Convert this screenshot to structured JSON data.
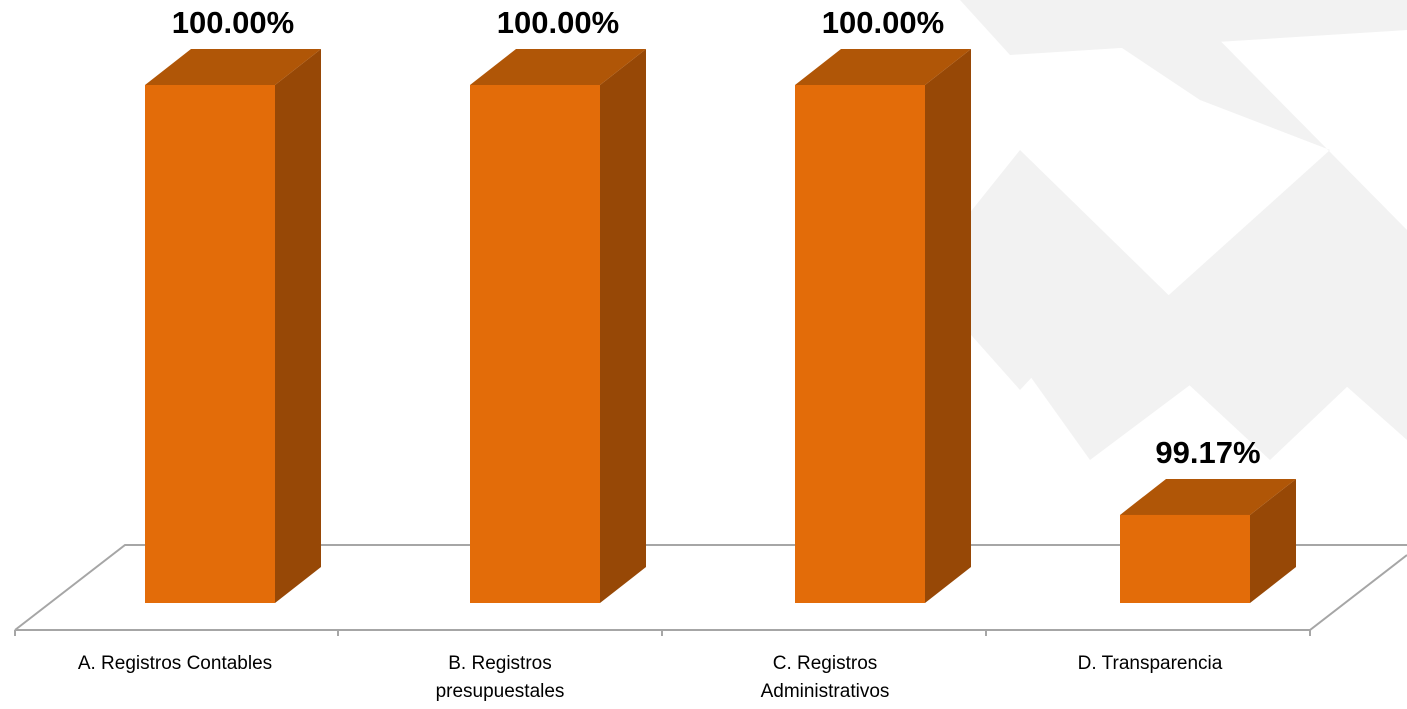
{
  "chart_data": {
    "type": "bar",
    "style": "3d-column",
    "title": "",
    "xlabel": "",
    "ylabel": "",
    "categories": [
      [
        "A. Registros Contables"
      ],
      [
        "B. Registros",
        "presupuestales"
      ],
      [
        "C. Registros",
        "Administrativos"
      ],
      [
        "D. Transparencia"
      ]
    ],
    "values": [
      100.0,
      100.0,
      100.0,
      99.17
    ],
    "data_labels": [
      "100.00%",
      "100.00%",
      "100.00%",
      "99.17%"
    ],
    "ylim": [
      99.0,
      100.0
    ],
    "grid": false,
    "legend": "none"
  },
  "colors": {
    "bar_front": "#e36c09",
    "bar_top": "#b05607",
    "bar_side": "#974806",
    "floor_line": "#a6a6a6",
    "watermark": "#f2f2f2"
  }
}
